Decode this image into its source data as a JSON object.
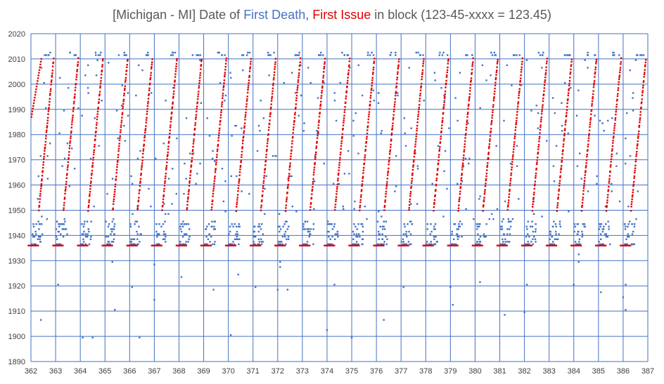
{
  "chart_data": {
    "type": "scatter",
    "title": {
      "prefix": "[Michigan - MI] Date of ",
      "series1": "First Death",
      "separator": ", ",
      "series2": "First Issue",
      "suffix": " in block (123-45-xxxx = 123.45)"
    },
    "xlim": [
      362,
      387
    ],
    "ylim": [
      1890,
      2020
    ],
    "x_ticks": [
      362,
      363,
      364,
      365,
      366,
      367,
      368,
      369,
      370,
      371,
      372,
      373,
      374,
      375,
      376,
      377,
      378,
      379,
      380,
      381,
      382,
      383,
      384,
      385,
      386,
      387
    ],
    "y_ticks": [
      1890,
      1900,
      1910,
      1920,
      1930,
      1940,
      1950,
      1960,
      1970,
      1980,
      1990,
      2000,
      2010,
      2020
    ],
    "grid": true,
    "colors": {
      "first_death": "#4472c4",
      "first_issue": "#e00000",
      "title_text": "#595959",
      "grid": "#4472c4"
    },
    "series": [
      {
        "name": "First Death",
        "description_pattern": "per area group: dense cluster 1936-1945, scattered 1945-2012, row at ~2011-2012, outliers ~1899-1930",
        "blocks": [
          362,
          363,
          364,
          365,
          366,
          367,
          368,
          369,
          370,
          371,
          372,
          373,
          374,
          375,
          376,
          377,
          378,
          379,
          380,
          381,
          382,
          383,
          384,
          385,
          386
        ],
        "cluster_low": 1936,
        "cluster_high": 1945,
        "top_row": 2011.5,
        "outliers": [
          [
            362.4,
            1906.5
          ],
          [
            363.1,
            1920.5
          ],
          [
            364.1,
            1899.5
          ],
          [
            364.5,
            1899.5
          ],
          [
            365.4,
            1910.5
          ],
          [
            365.3,
            1929.5
          ],
          [
            366.1,
            1919.5
          ],
          [
            366.4,
            1899.5
          ],
          [
            367.0,
            1914.5
          ],
          [
            367.0,
            1928.5
          ],
          [
            368.1,
            1923.5
          ],
          [
            369.4,
            1918.5
          ],
          [
            370.1,
            1900.5
          ],
          [
            370.4,
            1924.5
          ],
          [
            371.1,
            1919.5
          ],
          [
            372.0,
            1918.5
          ],
          [
            372.1,
            1929.5
          ],
          [
            372.1,
            1927.5
          ],
          [
            372.4,
            1918.5
          ],
          [
            374.3,
            1920.5
          ],
          [
            374.0,
            1902.5
          ],
          [
            375.0,
            1899.5
          ],
          [
            376.3,
            1906.5
          ],
          [
            377.1,
            1919.5
          ],
          [
            379.0,
            1919.5
          ],
          [
            379.1,
            1912.5
          ],
          [
            380.2,
            1921.5
          ],
          [
            381.2,
            1908.5
          ],
          [
            382.1,
            1920.5
          ],
          [
            382.0,
            1909.5
          ],
          [
            384.0,
            1920.5
          ],
          [
            384.2,
            1929.5
          ],
          [
            384.2,
            1932.5
          ],
          [
            385.1,
            1917.5
          ],
          [
            386.1,
            1920.5
          ],
          [
            386.1,
            1910.5
          ],
          [
            386.0,
            1915.5
          ]
        ]
      },
      {
        "name": "First Issue",
        "description_pattern": "per area group: flat run at 1936 for first ~30% of range, then rising from ~1950 to ~2010 across remaining range; first group starts at ~1987",
        "base_year": 1936,
        "start_rise": 1950,
        "end_rise": 2010
      }
    ]
  }
}
